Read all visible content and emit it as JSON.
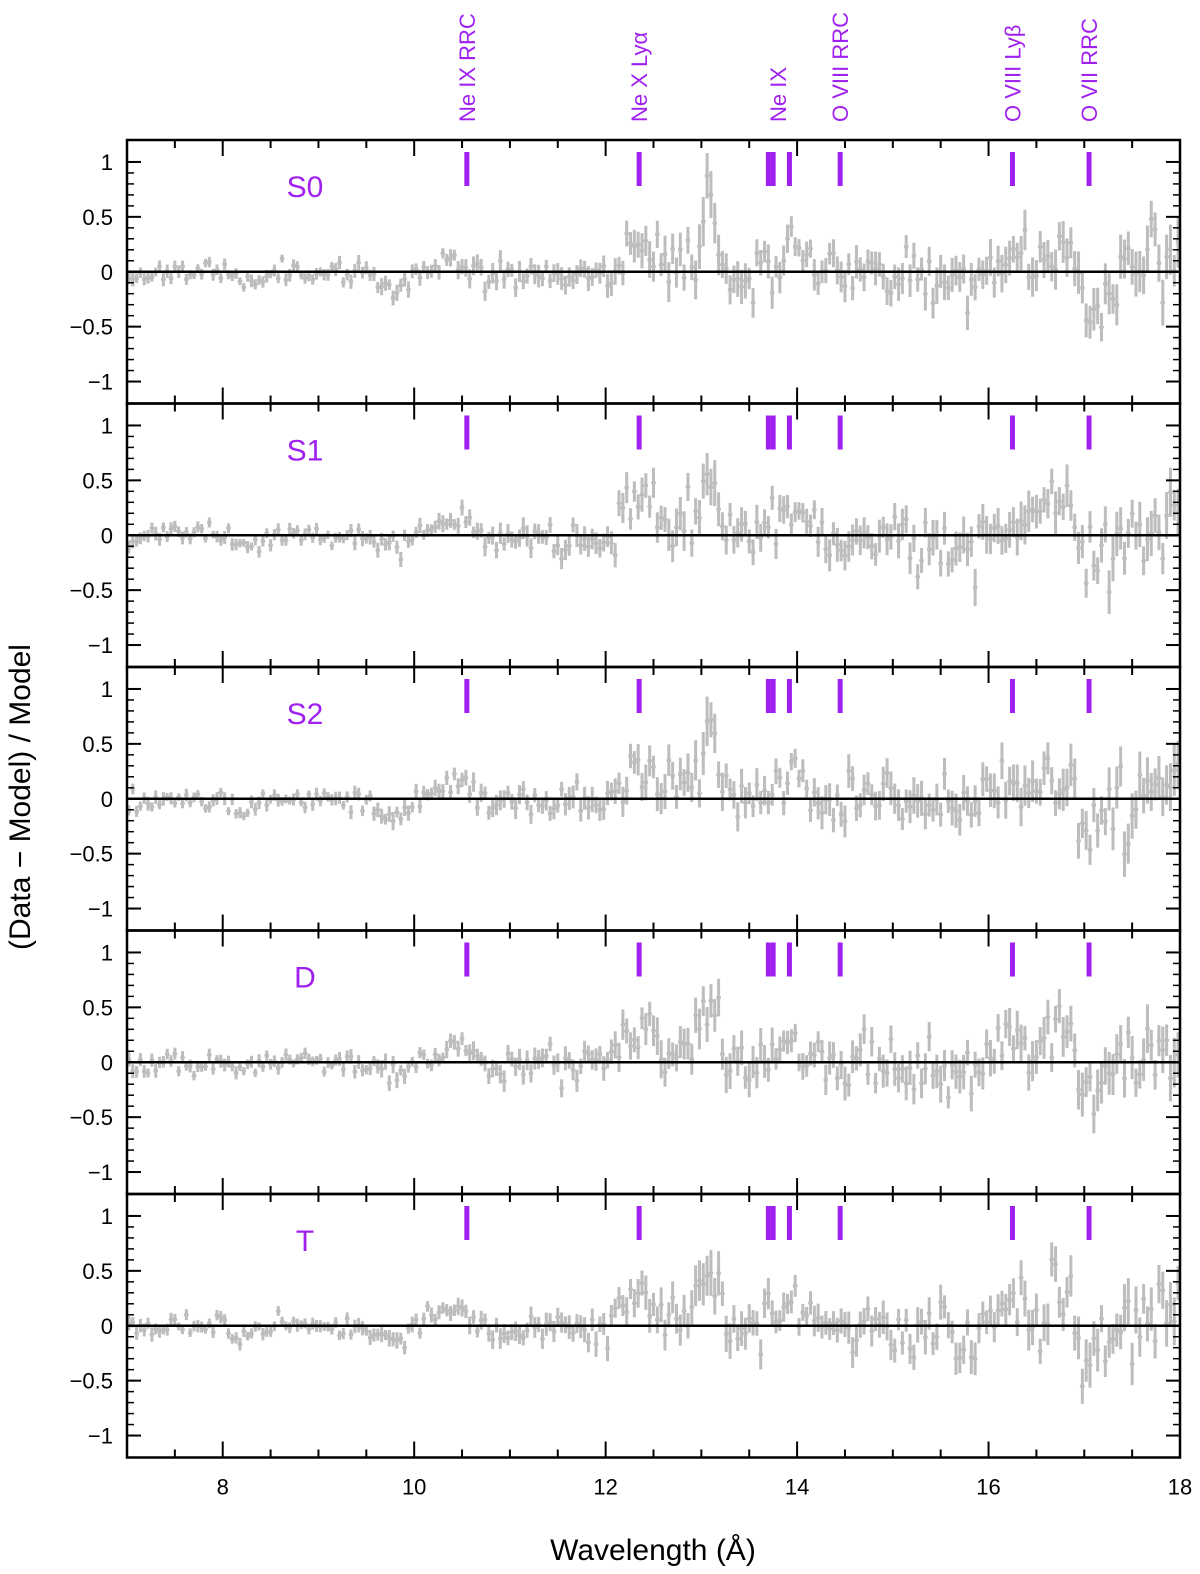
{
  "chart_data": {
    "type": "scatter",
    "xlabel": "Wavelength (Å)",
    "ylabel": "(Data − Model) / Model",
    "xlim": [
      7.0,
      18.0
    ],
    "ylim": [
      -1.2,
      1.2
    ],
    "x_ticks": [
      8,
      10,
      12,
      14,
      16,
      18
    ],
    "y_ticks": [
      1,
      0.5,
      0,
      -0.5,
      -1
    ],
    "y_tick_labels": [
      "1",
      "0.5",
      "0",
      "−0.5",
      "−1"
    ],
    "zero_line": 0,
    "marker_color": "#bdbdbd",
    "accent_color": "#a020f0",
    "line_markers": [
      {
        "label": "Ne IX RRC",
        "x": [
          10.55
        ]
      },
      {
        "label": "Ne X Lyα",
        "x": [
          12.35
        ]
      },
      {
        "label": "Ne IX",
        "x": [
          13.7,
          13.75,
          13.92
        ]
      },
      {
        "label": "O VIII RRC",
        "x": [
          14.45
        ]
      },
      {
        "label": "O VIII Lyβ",
        "x": [
          16.25
        ]
      },
      {
        "label": "O VII RRC",
        "x": [
          17.05
        ]
      }
    ],
    "panels": [
      {
        "label": "S0",
        "bin_width": 0.04,
        "noise_seed": 11
      },
      {
        "label": "S1",
        "bin_width": 0.04,
        "noise_seed": 23
      },
      {
        "label": "S2",
        "bin_width": 0.04,
        "noise_seed": 37
      },
      {
        "label": "D",
        "bin_width": 0.04,
        "noise_seed": 51
      },
      {
        "label": "T",
        "bin_width": 0.04,
        "noise_seed": 73
      }
    ],
    "residual_profile": [
      {
        "x": 7.0,
        "y": -0.05,
        "err": 0.06
      },
      {
        "x": 7.5,
        "y": 0.02,
        "err": 0.05
      },
      {
        "x": 8.0,
        "y": 0.0,
        "err": 0.05
      },
      {
        "x": 8.2,
        "y": -0.12,
        "err": 0.05
      },
      {
        "x": 8.5,
        "y": 0.02,
        "err": 0.05
      },
      {
        "x": 9.0,
        "y": 0.0,
        "err": 0.05
      },
      {
        "x": 9.5,
        "y": -0.05,
        "err": 0.06
      },
      {
        "x": 9.8,
        "y": -0.15,
        "err": 0.07
      },
      {
        "x": 10.0,
        "y": 0.0,
        "err": 0.06
      },
      {
        "x": 10.5,
        "y": 0.12,
        "err": 0.07
      },
      {
        "x": 10.8,
        "y": -0.05,
        "err": 0.08
      },
      {
        "x": 11.5,
        "y": 0.0,
        "err": 0.09
      },
      {
        "x": 12.0,
        "y": -0.05,
        "err": 0.1
      },
      {
        "x": 12.3,
        "y": 0.3,
        "err": 0.13
      },
      {
        "x": 12.6,
        "y": 0.1,
        "err": 0.15
      },
      {
        "x": 12.9,
        "y": 0.15,
        "err": 0.16
      },
      {
        "x": 13.05,
        "y": 0.6,
        "err": 0.2
      },
      {
        "x": 13.3,
        "y": -0.05,
        "err": 0.14
      },
      {
        "x": 13.8,
        "y": 0.1,
        "err": 0.13
      },
      {
        "x": 13.95,
        "y": 0.28,
        "err": 0.1
      },
      {
        "x": 14.3,
        "y": -0.1,
        "err": 0.13
      },
      {
        "x": 14.8,
        "y": 0.05,
        "err": 0.13
      },
      {
        "x": 15.3,
        "y": -0.05,
        "err": 0.14
      },
      {
        "x": 15.8,
        "y": -0.15,
        "err": 0.14
      },
      {
        "x": 16.2,
        "y": 0.15,
        "err": 0.15
      },
      {
        "x": 16.5,
        "y": 0.1,
        "err": 0.16
      },
      {
        "x": 16.8,
        "y": 0.35,
        "err": 0.17
      },
      {
        "x": 17.0,
        "y": -0.3,
        "err": 0.17
      },
      {
        "x": 17.5,
        "y": 0.05,
        "err": 0.18
      },
      {
        "x": 18.0,
        "y": 0.2,
        "err": 0.2
      }
    ]
  }
}
